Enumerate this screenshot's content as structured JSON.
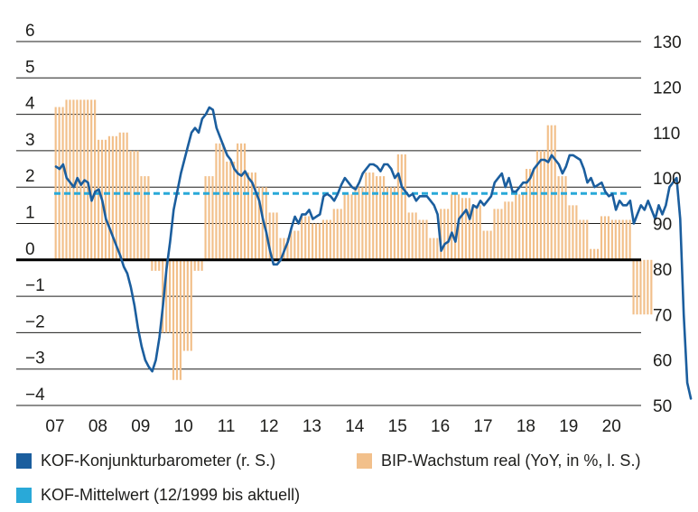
{
  "colors": {
    "kof_line": "#1b5e9e",
    "gdp_bars": "#f2c08b",
    "mean_line": "#29a9d8",
    "grid": "#1d1d1b",
    "zero_line": "#000000"
  },
  "legend": {
    "kof": "KOF-Konjunkturbarometer (r. S.)",
    "gdp": "BIP-Wachstum real (YoY, in %, l. S.)",
    "mean": "KOF-Mittelwert (12/1999 bis aktuell)"
  },
  "chart_data": {
    "type": "bar+line",
    "title": "",
    "grid": true,
    "legend_position": "bottom",
    "x_labels": [
      "07",
      "08",
      "09",
      "10",
      "11",
      "12",
      "13",
      "14",
      "15",
      "16",
      "17",
      "18",
      "19",
      "20"
    ],
    "left_axis": {
      "ticks": [
        "6",
        "5",
        "4",
        "3",
        "2",
        "1",
        "0",
        "−1",
        "−2",
        "−3",
        "−4"
      ],
      "ylim": [
        -4,
        6
      ]
    },
    "right_axis": {
      "ticks": [
        "130",
        "120",
        "110",
        "100",
        "90",
        "80",
        "70",
        "60",
        "50"
      ],
      "ylim": [
        50,
        130
      ]
    },
    "gdp_quarterly": {
      "name": "BIP-Wachstum real (YoY, in %, l. S.)",
      "axis": "left",
      "values": [
        4.2,
        4.4,
        4.4,
        4.4,
        3.3,
        3.4,
        3.5,
        3.0,
        2.3,
        -0.3,
        -2.0,
        -3.3,
        -2.5,
        -0.3,
        2.3,
        3.2,
        2.7,
        3.2,
        2.4,
        2.0,
        1.3,
        0.6,
        0.8,
        1.2,
        1.0,
        1.1,
        1.4,
        1.8,
        2.0,
        2.4,
        2.3,
        2.0,
        2.9,
        1.3,
        1.1,
        0.6,
        1.4,
        1.8,
        1.7,
        1.5,
        0.8,
        1.4,
        1.6,
        1.8,
        2.5,
        3.0,
        3.7,
        2.3,
        1.5,
        1.1,
        0.3,
        1.2,
        1.1,
        1.1,
        -1.5,
        -1.5
      ]
    },
    "kof_monthly": {
      "name": "KOF-Konjunkturbarometer (r. S.)",
      "axis": "right",
      "values": [
        102.5,
        102,
        103,
        100,
        99,
        98,
        100,
        98.5,
        99.5,
        99,
        95,
        97,
        97.5,
        95,
        91,
        89,
        87,
        85,
        83,
        80.5,
        79,
        76,
        72,
        67,
        63,
        60,
        58.5,
        57.5,
        60,
        65,
        72,
        80,
        86,
        93,
        97,
        101,
        104,
        107,
        110,
        111,
        110,
        113,
        114,
        115.5,
        115,
        111,
        109,
        107,
        105,
        104,
        102,
        101,
        100.5,
        101.5,
        100,
        99,
        97,
        95,
        91,
        88,
        84,
        81,
        81,
        82,
        84,
        86,
        89,
        91.5,
        90,
        92,
        92,
        93,
        91,
        91.5,
        92,
        96,
        96.5,
        96,
        95,
        96.5,
        98.5,
        100,
        99,
        98,
        97.5,
        99,
        101,
        102,
        103,
        103,
        102.5,
        101.5,
        103,
        103,
        102,
        100,
        101,
        98,
        97,
        96,
        96.5,
        95,
        96,
        96,
        96,
        95,
        94,
        92,
        84,
        85.5,
        86,
        88,
        86,
        91,
        92,
        93,
        91,
        94,
        93.5,
        95,
        94,
        95,
        96,
        99,
        100,
        101,
        98,
        100,
        97,
        97,
        98,
        99,
        99,
        100,
        102,
        103,
        104,
        104,
        103.5,
        105,
        104,
        103,
        101,
        102.5,
        105,
        105,
        104.5,
        104,
        102,
        99,
        100,
        98,
        98.5,
        99,
        97,
        96,
        96.5,
        93,
        95,
        94,
        94,
        95,
        90,
        92,
        94,
        93,
        95,
        93,
        91,
        94,
        92,
        94,
        98,
        99,
        100,
        91,
        70,
        55,
        51.5
      ]
    },
    "mean_line": {
      "name": "KOF-Mittelwert (12/1999 bis aktuell)",
      "axis": "right",
      "value": 96.6
    }
  }
}
